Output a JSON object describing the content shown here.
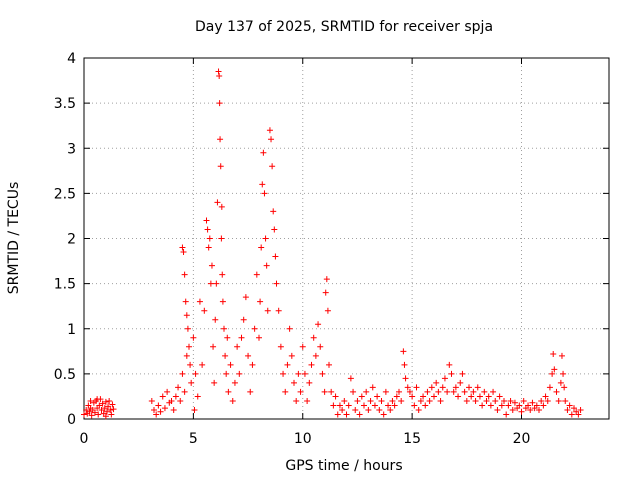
{
  "chart_data": {
    "type": "scatter",
    "title": "Day 137 of 2025, SRMTID for receiver spja",
    "xlabel": "GPS time / hours",
    "ylabel": "SRMTID / TECUs",
    "xlim": [
      0,
      24
    ],
    "ylim": [
      0,
      4
    ],
    "xticks": [
      0,
      5,
      10,
      15,
      20
    ],
    "xtick_labels": [
      "0",
      "5",
      "10",
      "15",
      "20"
    ],
    "yticks": [
      0,
      0.5,
      1,
      1.5,
      2,
      2.5,
      3,
      3.5,
      4
    ],
    "ytick_labels": [
      "0",
      "0.5",
      "1",
      "1.5",
      "2",
      "2.5",
      "3",
      "3.5",
      "4"
    ],
    "grid": true,
    "marker": "+",
    "color": "#ff0000",
    "series": [
      {
        "name": "SRMTID",
        "points": [
          [
            0.0,
            0.05
          ],
          [
            0.1,
            0.1
          ],
          [
            0.15,
            0.06
          ],
          [
            0.2,
            0.15
          ],
          [
            0.25,
            0.08
          ],
          [
            0.3,
            0.12
          ],
          [
            0.35,
            0.04
          ],
          [
            0.4,
            0.1
          ],
          [
            0.45,
            0.18
          ],
          [
            0.5,
            0.07
          ],
          [
            0.55,
            0.2
          ],
          [
            0.6,
            0.12
          ],
          [
            0.65,
            0.05
          ],
          [
            0.7,
            0.15
          ],
          [
            0.75,
            0.22
          ],
          [
            0.8,
            0.1
          ],
          [
            0.85,
            0.17
          ],
          [
            0.9,
            0.06
          ],
          [
            0.95,
            0.12
          ],
          [
            1.0,
            0.19
          ],
          [
            1.05,
            0.08
          ],
          [
            1.1,
            0.14
          ],
          [
            1.15,
            0.2
          ],
          [
            1.2,
            0.1
          ],
          [
            1.25,
            0.05
          ],
          [
            1.3,
            0.16
          ],
          [
            1.35,
            0.11
          ],
          [
            0.3,
            0.2
          ],
          [
            0.6,
            0.22
          ],
          [
            1.0,
            0.03
          ],
          [
            3.1,
            0.2
          ],
          [
            3.2,
            0.1
          ],
          [
            3.3,
            0.05
          ],
          [
            3.4,
            0.15
          ],
          [
            3.5,
            0.08
          ],
          [
            3.6,
            0.25
          ],
          [
            3.7,
            0.12
          ],
          [
            3.8,
            0.3
          ],
          [
            3.9,
            0.18
          ],
          [
            4.0,
            0.2
          ],
          [
            4.1,
            0.1
          ],
          [
            4.2,
            0.25
          ],
          [
            4.3,
            0.35
          ],
          [
            4.4,
            0.2
          ],
          [
            4.5,
            1.9
          ],
          [
            4.55,
            1.85
          ],
          [
            4.6,
            1.6
          ],
          [
            4.65,
            1.3
          ],
          [
            4.7,
            1.15
          ],
          [
            4.75,
            1.0
          ],
          [
            4.8,
            0.8
          ],
          [
            4.85,
            0.6
          ],
          [
            4.5,
            0.5
          ],
          [
            4.6,
            0.3
          ],
          [
            4.7,
            0.7
          ],
          [
            4.9,
            0.4
          ],
          [
            5.0,
            0.9
          ],
          [
            5.05,
            0.1
          ],
          [
            5.1,
            0.5
          ],
          [
            5.2,
            0.25
          ],
          [
            5.3,
            1.3
          ],
          [
            5.4,
            0.6
          ],
          [
            5.5,
            1.2
          ],
          [
            5.6,
            2.2
          ],
          [
            5.65,
            2.1
          ],
          [
            5.7,
            1.9
          ],
          [
            5.75,
            2.0
          ],
          [
            5.8,
            1.5
          ],
          [
            5.85,
            1.7
          ],
          [
            5.9,
            0.8
          ],
          [
            5.95,
            0.4
          ],
          [
            6.0,
            1.1
          ],
          [
            6.05,
            1.5
          ],
          [
            6.1,
            2.4
          ],
          [
            6.15,
            3.85
          ],
          [
            6.18,
            3.8
          ],
          [
            6.2,
            3.5
          ],
          [
            6.22,
            3.1
          ],
          [
            6.25,
            2.8
          ],
          [
            6.28,
            2.0
          ],
          [
            6.3,
            2.35
          ],
          [
            6.32,
            1.6
          ],
          [
            6.35,
            1.3
          ],
          [
            6.4,
            1.0
          ],
          [
            6.45,
            0.7
          ],
          [
            6.5,
            0.5
          ],
          [
            6.55,
            0.9
          ],
          [
            6.6,
            0.3
          ],
          [
            6.7,
            0.6
          ],
          [
            6.8,
            0.2
          ],
          [
            6.9,
            0.4
          ],
          [
            7.0,
            0.8
          ],
          [
            7.1,
            0.5
          ],
          [
            7.2,
            0.9
          ],
          [
            7.3,
            1.1
          ],
          [
            7.4,
            1.35
          ],
          [
            7.5,
            0.7
          ],
          [
            7.6,
            0.3
          ],
          [
            7.7,
            0.6
          ],
          [
            7.8,
            1.0
          ],
          [
            7.9,
            1.6
          ],
          [
            8.0,
            0.9
          ],
          [
            8.05,
            1.3
          ],
          [
            8.1,
            1.9
          ],
          [
            8.15,
            2.6
          ],
          [
            8.2,
            2.95
          ],
          [
            8.25,
            2.5
          ],
          [
            8.3,
            2.0
          ],
          [
            8.35,
            1.7
          ],
          [
            8.4,
            1.2
          ],
          [
            8.5,
            3.2
          ],
          [
            8.55,
            3.1
          ],
          [
            8.6,
            2.8
          ],
          [
            8.65,
            2.3
          ],
          [
            8.7,
            2.1
          ],
          [
            8.75,
            1.8
          ],
          [
            8.8,
            1.5
          ],
          [
            8.9,
            1.2
          ],
          [
            9.0,
            0.8
          ],
          [
            9.1,
            0.5
          ],
          [
            9.2,
            0.3
          ],
          [
            9.3,
            0.6
          ],
          [
            9.4,
            1.0
          ],
          [
            9.5,
            0.7
          ],
          [
            9.6,
            0.4
          ],
          [
            9.7,
            0.2
          ],
          [
            9.8,
            0.5
          ],
          [
            9.9,
            0.3
          ],
          [
            10.0,
            0.8
          ],
          [
            10.1,
            0.5
          ],
          [
            10.2,
            0.2
          ],
          [
            10.3,
            0.4
          ],
          [
            10.4,
            0.6
          ],
          [
            10.5,
            0.9
          ],
          [
            10.6,
            0.7
          ],
          [
            10.7,
            1.05
          ],
          [
            10.8,
            0.8
          ],
          [
            10.9,
            0.5
          ],
          [
            11.0,
            0.3
          ],
          [
            11.05,
            1.4
          ],
          [
            11.1,
            1.55
          ],
          [
            11.15,
            1.2
          ],
          [
            11.2,
            0.6
          ],
          [
            11.3,
            0.3
          ],
          [
            11.4,
            0.15
          ],
          [
            11.5,
            0.25
          ],
          [
            11.6,
            0.05
          ],
          [
            11.7,
            0.15
          ],
          [
            11.8,
            0.1
          ],
          [
            11.9,
            0.2
          ],
          [
            12.0,
            0.05
          ],
          [
            12.1,
            0.15
          ],
          [
            12.2,
            0.45
          ],
          [
            12.3,
            0.3
          ],
          [
            12.4,
            0.1
          ],
          [
            12.5,
            0.2
          ],
          [
            12.6,
            0.05
          ],
          [
            12.7,
            0.25
          ],
          [
            12.8,
            0.15
          ],
          [
            12.9,
            0.3
          ],
          [
            13.0,
            0.1
          ],
          [
            13.1,
            0.2
          ],
          [
            13.2,
            0.35
          ],
          [
            13.3,
            0.15
          ],
          [
            13.4,
            0.25
          ],
          [
            13.5,
            0.1
          ],
          [
            13.6,
            0.2
          ],
          [
            13.7,
            0.05
          ],
          [
            13.8,
            0.3
          ],
          [
            13.9,
            0.15
          ],
          [
            14.0,
            0.1
          ],
          [
            14.1,
            0.2
          ],
          [
            14.2,
            0.15
          ],
          [
            14.3,
            0.25
          ],
          [
            14.4,
            0.3
          ],
          [
            14.5,
            0.2
          ],
          [
            14.6,
            0.75
          ],
          [
            14.65,
            0.6
          ],
          [
            14.7,
            0.45
          ],
          [
            14.8,
            0.35
          ],
          [
            14.9,
            0.3
          ],
          [
            15.0,
            0.25
          ],
          [
            15.1,
            0.15
          ],
          [
            15.2,
            0.35
          ],
          [
            15.3,
            0.1
          ],
          [
            15.4,
            0.2
          ],
          [
            15.5,
            0.25
          ],
          [
            15.6,
            0.15
          ],
          [
            15.7,
            0.3
          ],
          [
            15.8,
            0.2
          ],
          [
            15.9,
            0.35
          ],
          [
            16.0,
            0.25
          ],
          [
            16.1,
            0.4
          ],
          [
            16.2,
            0.3
          ],
          [
            16.3,
            0.2
          ],
          [
            16.4,
            0.35
          ],
          [
            16.5,
            0.45
          ],
          [
            16.6,
            0.3
          ],
          [
            16.7,
            0.6
          ],
          [
            16.8,
            0.5
          ],
          [
            16.9,
            0.3
          ],
          [
            17.0,
            0.35
          ],
          [
            17.1,
            0.25
          ],
          [
            17.2,
            0.4
          ],
          [
            17.3,
            0.5
          ],
          [
            17.4,
            0.3
          ],
          [
            17.5,
            0.2
          ],
          [
            17.6,
            0.35
          ],
          [
            17.7,
            0.25
          ],
          [
            17.8,
            0.3
          ],
          [
            17.9,
            0.2
          ],
          [
            18.0,
            0.35
          ],
          [
            18.1,
            0.25
          ],
          [
            18.2,
            0.15
          ],
          [
            18.3,
            0.3
          ],
          [
            18.4,
            0.2
          ],
          [
            18.5,
            0.25
          ],
          [
            18.6,
            0.15
          ],
          [
            18.7,
            0.3
          ],
          [
            18.8,
            0.2
          ],
          [
            18.9,
            0.1
          ],
          [
            19.0,
            0.25
          ],
          [
            19.1,
            0.15
          ],
          [
            19.2,
            0.2
          ],
          [
            19.3,
            0.05
          ],
          [
            19.4,
            0.15
          ],
          [
            19.5,
            0.2
          ],
          [
            19.6,
            0.1
          ],
          [
            19.7,
            0.18
          ],
          [
            19.8,
            0.12
          ],
          [
            19.9,
            0.15
          ],
          [
            20.0,
            0.08
          ],
          [
            20.1,
            0.2
          ],
          [
            20.2,
            0.12
          ],
          [
            20.3,
            0.15
          ],
          [
            20.4,
            0.1
          ],
          [
            20.5,
            0.18
          ],
          [
            20.6,
            0.12
          ],
          [
            20.7,
            0.15
          ],
          [
            20.8,
            0.1
          ],
          [
            20.9,
            0.2
          ],
          [
            21.0,
            0.15
          ],
          [
            21.1,
            0.25
          ],
          [
            21.2,
            0.2
          ],
          [
            21.3,
            0.35
          ],
          [
            21.4,
            0.5
          ],
          [
            21.45,
            0.72
          ],
          [
            21.5,
            0.55
          ],
          [
            21.6,
            0.3
          ],
          [
            21.7,
            0.2
          ],
          [
            21.8,
            0.4
          ],
          [
            21.85,
            0.7
          ],
          [
            21.9,
            0.5
          ],
          [
            21.95,
            0.35
          ],
          [
            22.0,
            0.2
          ],
          [
            22.1,
            0.1
          ],
          [
            22.2,
            0.15
          ],
          [
            22.3,
            0.05
          ],
          [
            22.4,
            0.12
          ],
          [
            22.5,
            0.08
          ],
          [
            22.6,
            0.05
          ],
          [
            22.7,
            0.1
          ]
        ]
      }
    ]
  }
}
